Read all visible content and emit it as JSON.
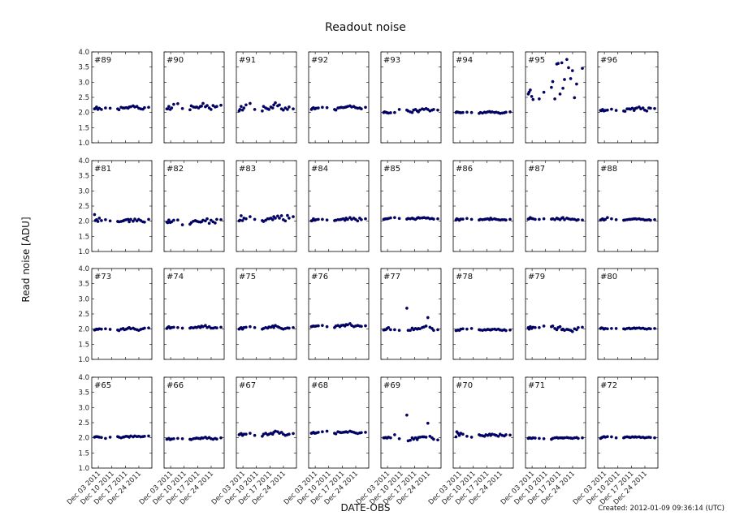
{
  "chart_data": {
    "type": "scatter",
    "title": "Readout noise",
    "xlabel": "DATE-OBS",
    "ylabel": "Read noise [ADU]",
    "footer": "Created: 2012-01-09 09:36:14 (UTC)",
    "ylim": [
      1.0,
      4.0
    ],
    "yticks": [
      "1.0",
      "1.5",
      "2.0",
      "2.5",
      "3.0",
      "3.5",
      "4.0"
    ],
    "xlim": [
      "2011-11-29T14:00",
      "2011-12-30T18:00"
    ],
    "xticks": [
      {
        "date": "2011-12-03T00:00",
        "label": "Dec 03 2011"
      },
      {
        "date": "2011-12-10T00:00",
        "label": "Dec 10 2011"
      },
      {
        "date": "2011-12-17T00:00",
        "label": "Dec 17 2011"
      },
      {
        "date": "2011-12-24T00:00",
        "label": "Dec 24 2011"
      }
    ],
    "grid": false,
    "marker_color": "#000080",
    "layout": "4 rows x 8 columns of subplots, shared axes",
    "dates": [
      "2011-12-01T00:00",
      "2011-12-01T10:00",
      "2011-12-02T02:00",
      "2011-12-02T19:00",
      "2011-12-03T12:00",
      "2011-12-04T14:00",
      "2011-12-06T17:00",
      "2011-12-09T02:00",
      "2011-12-13T00:00",
      "2011-12-13T17:00",
      "2011-12-14T19:00",
      "2011-12-15T19:00",
      "2011-12-16T12:00",
      "2011-12-17T12:00",
      "2011-12-18T10:00",
      "2011-12-19T00:00",
      "2011-12-19T19:00",
      "2011-12-21T00:00",
      "2011-12-21T22:00",
      "2011-12-23T00:00",
      "2011-12-23T22:00",
      "2011-12-25T00:00",
      "2011-12-26T02:00",
      "2011-12-26T22:00",
      "2011-12-29T02:00"
    ],
    "panels": [
      {
        "label": "#89",
        "values": [
          2.12,
          2.13,
          2.18,
          2.1,
          2.14,
          2.1,
          2.15,
          2.14,
          2.12,
          2.09,
          2.17,
          2.15,
          2.15,
          2.16,
          2.14,
          2.18,
          2.19,
          2.22,
          2.18,
          2.2,
          2.14,
          2.12,
          2.11,
          2.16,
          2.17
        ]
      },
      {
        "label": "#90",
        "values": [
          2.12,
          2.12,
          2.2,
          2.1,
          2.15,
          2.27,
          2.29,
          2.13,
          2.09,
          2.22,
          2.18,
          2.17,
          2.18,
          2.15,
          2.2,
          2.21,
          2.3,
          2.19,
          2.23,
          2.15,
          2.1,
          2.23,
          2.18,
          2.2,
          2.24
        ]
      },
      {
        "label": "#91",
        "values": [
          2.05,
          2.1,
          2.2,
          2.08,
          2.15,
          2.25,
          2.3,
          2.1,
          2.05,
          2.2,
          2.15,
          2.12,
          2.1,
          2.18,
          2.15,
          2.25,
          2.32,
          2.22,
          2.25,
          2.12,
          2.08,
          2.15,
          2.1,
          2.18,
          2.12
        ]
      },
      {
        "label": "#92",
        "values": [
          2.1,
          2.13,
          2.16,
          2.12,
          2.14,
          2.15,
          2.17,
          2.16,
          2.1,
          2.08,
          2.15,
          2.16,
          2.17,
          2.16,
          2.17,
          2.18,
          2.2,
          2.22,
          2.18,
          2.2,
          2.16,
          2.14,
          2.15,
          2.12,
          2.17
        ]
      },
      {
        "label": "#93",
        "values": [
          2.0,
          2.02,
          2.01,
          1.99,
          1.98,
          1.99,
          2.0,
          2.1,
          2.08,
          2.05,
          2.02,
          2.0,
          2.08,
          2.1,
          2.05,
          2.02,
          2.08,
          2.12,
          2.1,
          2.13,
          2.1,
          2.05,
          2.08,
          2.1,
          2.08
        ]
      },
      {
        "label": "#94",
        "values": [
          2.0,
          2.02,
          2.01,
          2.0,
          1.99,
          2.0,
          2.01,
          2.0,
          1.97,
          2.0,
          1.98,
          2.01,
          2.0,
          2.02,
          2.03,
          2.01,
          2.02,
          2.0,
          2.01,
          1.99,
          1.97,
          1.98,
          1.99,
          2.01,
          2.02
        ]
      },
      {
        "label": "#95",
        "values": [
          2.61,
          2.67,
          2.74,
          2.53,
          2.43,
          null,
          2.45,
          2.67,
          2.83,
          3.02,
          2.45,
          3.6,
          3.62,
          2.61,
          3.64,
          2.8,
          3.09,
          3.75,
          3.48,
          3.12,
          3.38,
          2.49,
          2.94,
          null,
          3.46
        ]
      },
      {
        "label": "#96",
        "values": [
          2.07,
          2.06,
          2.1,
          2.05,
          2.07,
          2.08,
          2.11,
          2.07,
          2.05,
          2.04,
          2.12,
          2.12,
          2.11,
          2.14,
          2.07,
          2.13,
          2.15,
          2.18,
          2.12,
          2.15,
          2.08,
          2.05,
          2.15,
          2.14,
          2.13
        ]
      },
      {
        "label": "#81",
        "values": [
          2.22,
          2.02,
          2.05,
          1.99,
          2.1,
          2.02,
          2.05,
          2.01,
          1.99,
          1.98,
          1.99,
          2.01,
          2.03,
          2.05,
          2.06,
          1.98,
          2.06,
          2.0,
          2.07,
          2.01,
          2.06,
          2.02,
          1.98,
          1.97,
          2.06
        ]
      },
      {
        "label": "#82",
        "values": [
          1.97,
          1.95,
          2.04,
          1.96,
          1.98,
          2.03,
          2.04,
          1.88,
          1.9,
          1.95,
          2.0,
          2.02,
          2.0,
          1.98,
          1.97,
          1.98,
          2.03,
          2.01,
          2.08,
          1.93,
          2.03,
          1.98,
          1.94,
          2.06,
          2.05
        ]
      },
      {
        "label": "#83",
        "values": [
          2.01,
          2.03,
          2.18,
          2.02,
          2.1,
          2.08,
          2.15,
          2.06,
          2.02,
          1.99,
          2.03,
          2.08,
          2.08,
          2.1,
          2.05,
          2.15,
          2.1,
          2.17,
          2.1,
          2.18,
          2.05,
          2.01,
          2.19,
          2.1,
          2.15
        ]
      },
      {
        "label": "#84",
        "values": [
          2.01,
          2.02,
          2.08,
          2.03,
          2.05,
          2.06,
          2.06,
          2.04,
          2.02,
          2.03,
          2.05,
          2.05,
          2.06,
          2.08,
          2.03,
          2.1,
          2.06,
          2.12,
          2.06,
          2.1,
          2.06,
          2.01,
          2.1,
          2.05,
          2.08
        ]
      },
      {
        "label": "#85",
        "values": [
          2.06,
          2.07,
          2.08,
          2.08,
          2.09,
          2.11,
          2.12,
          2.09,
          2.07,
          2.09,
          2.08,
          2.1,
          2.08,
          2.06,
          2.1,
          2.12,
          2.1,
          2.11,
          2.12,
          2.1,
          2.11,
          2.08,
          2.09,
          2.07,
          2.08
        ]
      },
      {
        "label": "#86",
        "values": [
          2.04,
          2.08,
          2.06,
          2.03,
          2.07,
          2.07,
          2.09,
          2.06,
          2.04,
          2.06,
          2.05,
          2.06,
          2.07,
          2.08,
          2.05,
          2.1,
          2.06,
          2.08,
          2.06,
          2.05,
          2.04,
          2.05,
          2.05,
          2.04,
          2.06
        ]
      },
      {
        "label": "#87",
        "values": [
          2.07,
          2.08,
          2.12,
          2.09,
          2.08,
          2.06,
          2.06,
          2.08,
          2.07,
          2.08,
          2.05,
          2.1,
          2.08,
          2.05,
          2.1,
          2.12,
          2.05,
          2.1,
          2.08,
          2.06,
          2.07,
          2.06,
          2.03,
          2.05,
          2.04
        ]
      },
      {
        "label": "#88",
        "values": [
          2.04,
          2.05,
          2.08,
          2.04,
          2.06,
          2.12,
          2.08,
          2.05,
          2.03,
          2.04,
          2.05,
          2.06,
          2.06,
          2.07,
          2.08,
          2.08,
          2.07,
          2.08,
          2.06,
          2.06,
          2.04,
          2.04,
          2.05,
          2.03,
          2.05
        ]
      },
      {
        "label": "#73",
        "values": [
          1.97,
          1.98,
          2.0,
          1.99,
          2.01,
          2.0,
          2.01,
          1.99,
          1.97,
          1.95,
          2.0,
          2.02,
          1.98,
          2.0,
          2.03,
          2.05,
          2.01,
          2.03,
          2.0,
          1.98,
          1.96,
          1.99,
          2.01,
          2.03,
          2.04
        ]
      },
      {
        "label": "#74",
        "values": [
          2.02,
          2.05,
          2.08,
          2.03,
          2.05,
          2.06,
          2.05,
          2.03,
          2.03,
          2.05,
          2.04,
          2.06,
          2.05,
          2.08,
          2.05,
          2.1,
          2.08,
          2.12,
          2.05,
          2.08,
          2.03,
          2.03,
          2.05,
          2.04,
          2.06
        ]
      },
      {
        "label": "#75",
        "values": [
          2.0,
          2.02,
          2.05,
          2.0,
          2.05,
          2.06,
          2.08,
          2.05,
          2.0,
          2.02,
          2.05,
          2.03,
          2.07,
          2.06,
          2.1,
          2.05,
          2.12,
          2.08,
          2.05,
          2.02,
          2.0,
          2.02,
          2.04,
          2.03,
          2.05
        ]
      },
      {
        "label": "#76",
        "values": [
          2.08,
          2.09,
          2.1,
          2.09,
          2.1,
          2.11,
          2.12,
          2.08,
          2.05,
          2.1,
          2.12,
          2.08,
          2.12,
          2.13,
          2.1,
          2.15,
          2.14,
          2.18,
          2.12,
          2.08,
          2.1,
          2.12,
          2.1,
          2.09,
          2.11
        ]
      },
      {
        "label": "#77",
        "values": [
          1.97,
          1.98,
          1.98,
          2.02,
          2.05,
          1.98,
          1.98,
          1.96,
          2.69,
          1.96,
          1.96,
          2.03,
          1.98,
          2.02,
          2.0,
          2.02,
          2.01,
          2.05,
          2.07,
          2.1,
          2.38,
          2.06,
          2.02,
          1.96,
          1.98
        ]
      },
      {
        "label": "#78",
        "values": [
          1.95,
          1.96,
          1.97,
          1.96,
          2.0,
          2.01,
          2.0,
          2.02,
          1.98,
          1.97,
          1.96,
          1.98,
          1.97,
          1.99,
          1.98,
          1.97,
          1.99,
          2.0,
          1.98,
          2.0,
          1.97,
          1.96,
          1.98,
          1.95,
          1.97
        ]
      },
      {
        "label": "#79",
        "values": [
          2.05,
          2.0,
          2.08,
          2.02,
          2.06,
          2.05,
          2.05,
          2.1,
          2.08,
          2.1,
          2.02,
          1.98,
          2.05,
          2.08,
          1.98,
          2.0,
          1.96,
          1.99,
          1.98,
          1.96,
          1.92,
          2.01,
          1.98,
          2.05,
          2.06
        ]
      },
      {
        "label": "#80",
        "values": [
          2.02,
          2.04,
          2.03,
          2.0,
          2.02,
          2.01,
          2.02,
          2.02,
          2.01,
          2.0,
          2.02,
          2.03,
          2.01,
          2.02,
          2.04,
          2.02,
          2.03,
          2.04,
          2.02,
          2.03,
          2.01,
          2.0,
          2.02,
          2.01,
          2.02
        ]
      },
      {
        "label": "#65",
        "values": [
          2.02,
          2.03,
          2.04,
          2.03,
          2.02,
          2.01,
          1.98,
          2.02,
          2.04,
          2.02,
          2.0,
          2.02,
          2.03,
          2.05,
          2.04,
          2.02,
          2.06,
          2.03,
          2.06,
          2.04,
          2.05,
          2.03,
          2.04,
          2.05,
          2.06
        ]
      },
      {
        "label": "#66",
        "values": [
          1.95,
          1.96,
          1.98,
          1.94,
          1.96,
          1.97,
          1.98,
          1.97,
          1.95,
          1.94,
          1.97,
          1.98,
          1.99,
          1.98,
          1.97,
          2.0,
          1.99,
          2.02,
          1.98,
          2.01,
          1.97,
          1.95,
          1.98,
          1.96,
          2.0
        ]
      },
      {
        "label": "#67",
        "values": [
          2.1,
          2.12,
          2.14,
          2.08,
          2.12,
          2.12,
          2.15,
          2.08,
          2.05,
          2.12,
          2.15,
          2.1,
          2.12,
          2.15,
          2.12,
          2.18,
          2.22,
          2.2,
          2.15,
          2.18,
          2.12,
          2.08,
          2.1,
          2.12,
          2.14
        ]
      },
      {
        "label": "#68",
        "values": [
          2.15,
          2.16,
          2.18,
          2.15,
          2.16,
          2.18,
          2.2,
          2.22,
          2.15,
          2.13,
          2.2,
          2.18,
          2.17,
          2.18,
          2.19,
          2.2,
          2.18,
          2.22,
          2.2,
          2.18,
          2.16,
          2.14,
          2.16,
          2.17,
          2.18
        ]
      },
      {
        "label": "#69",
        "values": [
          2.0,
          2.0,
          2.01,
          1.99,
          2.02,
          2.0,
          2.1,
          1.97,
          2.75,
          1.9,
          1.92,
          2.0,
          1.95,
          2.0,
          1.94,
          2.01,
          2.02,
          2.03,
          2.03,
          2.02,
          2.48,
          2.05,
          2.0,
          1.95,
          1.93
        ]
      },
      {
        "label": "#70",
        "values": [
          2.03,
          2.2,
          2.15,
          2.08,
          2.15,
          2.12,
          2.05,
          2.02,
          2.1,
          2.08,
          2.07,
          2.05,
          2.1,
          2.08,
          2.12,
          2.08,
          2.12,
          2.1,
          2.08,
          2.05,
          2.12,
          2.08,
          2.06,
          2.1,
          2.09
        ]
      },
      {
        "label": "#71",
        "values": [
          1.98,
          2.0,
          1.99,
          1.98,
          2.0,
          1.99,
          1.98,
          1.97,
          1.95,
          1.98,
          2.0,
          2.01,
          1.99,
          2.0,
          2.0,
          1.99,
          2.0,
          2.01,
          2.0,
          1.99,
          1.98,
          2.0,
          2.01,
          1.98,
          2.0
        ]
      },
      {
        "label": "#72",
        "values": [
          1.98,
          2.0,
          2.02,
          2.04,
          2.02,
          2.04,
          2.03,
          2.0,
          2.0,
          2.02,
          2.03,
          2.02,
          2.01,
          2.03,
          2.02,
          2.03,
          2.02,
          2.03,
          2.01,
          2.02,
          2.0,
          2.01,
          2.02,
          2.01,
          2.0
        ]
      }
    ]
  }
}
